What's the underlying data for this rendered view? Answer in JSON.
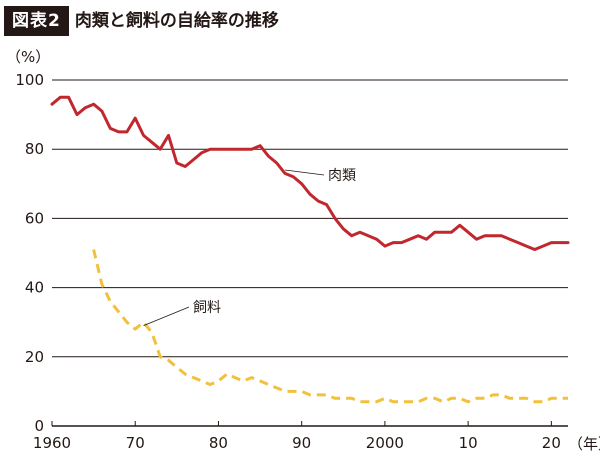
{
  "header": {
    "badge": "図表2",
    "title": "肉類と飼料の自給率の推移"
  },
  "colors": {
    "meat": "#c0282d",
    "feed": "#f2c13c",
    "grid": "#231815",
    "badge_bg": "#231815"
  },
  "chart_data": {
    "type": "line",
    "title": "肉類と飼料の自給率の推移",
    "y_unit_label": "（%）",
    "x_unit_label": "（年）",
    "ylim": [
      0,
      100
    ],
    "xlim": [
      1960,
      2022
    ],
    "y_ticks": [
      0,
      20,
      40,
      60,
      80,
      100
    ],
    "y_tick_labels": [
      "0",
      "20",
      "40",
      "60",
      "80",
      "100"
    ],
    "x_ticks": [
      1960,
      1970,
      1980,
      1990,
      2000,
      2010,
      2020
    ],
    "x_tick_labels": [
      "1960",
      "70",
      "80",
      "90",
      "2000",
      "10",
      "20"
    ],
    "grid": "horizontal",
    "series": [
      {
        "name": "肉類",
        "style": "solid",
        "color": "#c0282d",
        "x": [
          1960,
          1961,
          1962,
          1963,
          1964,
          1965,
          1966,
          1967,
          1968,
          1969,
          1970,
          1971,
          1972,
          1973,
          1974,
          1975,
          1976,
          1977,
          1978,
          1979,
          1980,
          1981,
          1982,
          1983,
          1984,
          1985,
          1986,
          1987,
          1988,
          1989,
          1990,
          1991,
          1992,
          1993,
          1994,
          1995,
          1996,
          1997,
          1998,
          1999,
          2000,
          2001,
          2002,
          2003,
          2004,
          2005,
          2006,
          2007,
          2008,
          2009,
          2010,
          2011,
          2012,
          2013,
          2014,
          2015,
          2016,
          2017,
          2018,
          2019,
          2020,
          2021,
          2022
        ],
        "values": [
          93,
          95,
          95,
          90,
          92,
          93,
          91,
          86,
          85,
          85,
          89,
          84,
          82,
          80,
          84,
          76,
          75,
          77,
          79,
          80,
          80,
          80,
          80,
          80,
          80,
          81,
          78,
          76,
          73,
          72,
          70,
          67,
          65,
          64,
          60,
          57,
          55,
          56,
          55,
          54,
          52,
          53,
          53,
          54,
          55,
          54,
          56,
          56,
          56,
          58,
          56,
          54,
          55,
          55,
          55,
          54,
          53,
          52,
          51,
          52,
          53,
          53,
          53
        ]
      },
      {
        "name": "飼料",
        "style": "dashed",
        "color": "#f2c13c",
        "x": [
          1965,
          1966,
          1967,
          1968,
          1969,
          1970,
          1971,
          1972,
          1973,
          1974,
          1975,
          1976,
          1977,
          1978,
          1979,
          1980,
          1981,
          1982,
          1983,
          1984,
          1985,
          1986,
          1987,
          1988,
          1989,
          1990,
          1991,
          1992,
          1993,
          1994,
          1995,
          1996,
          1997,
          1998,
          1999,
          2000,
          2001,
          2002,
          2003,
          2004,
          2005,
          2006,
          2007,
          2008,
          2009,
          2010,
          2011,
          2012,
          2013,
          2014,
          2015,
          2016,
          2017,
          2018,
          2019,
          2020,
          2021,
          2022
        ],
        "values": [
          51,
          41,
          36,
          33,
          30,
          28,
          30,
          27,
          20,
          19,
          17,
          15,
          14,
          13,
          12,
          13,
          15,
          14,
          13,
          14,
          13,
          12,
          11,
          10,
          10,
          10,
          9,
          9,
          9,
          8,
          8,
          8,
          7,
          7,
          7,
          8,
          7,
          7,
          7,
          7,
          8,
          8,
          7,
          8,
          8,
          7,
          8,
          8,
          9,
          9,
          8,
          8,
          8,
          7,
          7,
          8,
          8,
          8
        ]
      }
    ]
  }
}
